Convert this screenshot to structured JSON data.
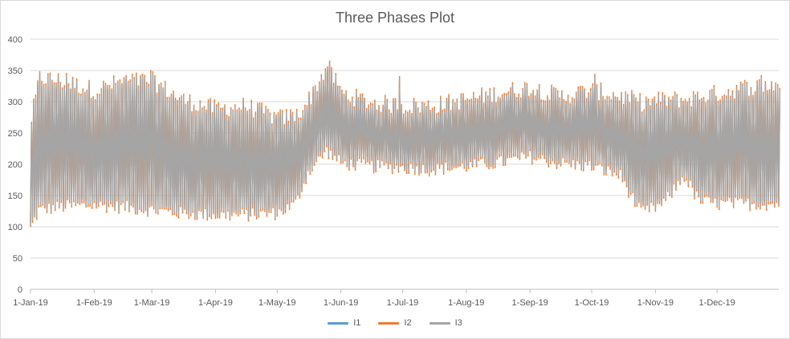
{
  "chart_data": {
    "type": "line",
    "title": "Three Phases Plot",
    "xlabel": "",
    "ylabel": "",
    "ylim": [
      0,
      400
    ],
    "yticks": [
      0,
      50,
      100,
      150,
      200,
      250,
      300,
      350,
      400
    ],
    "xlim": [
      "2019-01-01",
      "2019-12-31"
    ],
    "xticks": [
      {
        "label": "1-Jan-19",
        "date": "2019-01-01"
      },
      {
        "label": "1-Feb-19",
        "date": "2019-02-01"
      },
      {
        "label": "1-Mar-19",
        "date": "2019-03-01"
      },
      {
        "label": "1-Apr-19",
        "date": "2019-04-01"
      },
      {
        "label": "1-May-19",
        "date": "2019-05-01"
      },
      {
        "label": "1-Jun-19",
        "date": "2019-06-01"
      },
      {
        "label": "1-Jul-19",
        "date": "2019-07-01"
      },
      {
        "label": "1-Aug-19",
        "date": "2019-08-01"
      },
      {
        "label": "1-Sep-19",
        "date": "2019-09-01"
      },
      {
        "label": "1-Oct-19",
        "date": "2019-10-01"
      },
      {
        "label": "1-Nov-19",
        "date": "2019-11-01"
      },
      {
        "label": "1-Dec-19",
        "date": "2019-12-01"
      }
    ],
    "grid": true,
    "legend_position": "bottom",
    "envelope": [
      {
        "date": "2019-01-01",
        "low": 100,
        "high": 270
      },
      {
        "date": "2019-01-05",
        "low": 130,
        "high": 335
      },
      {
        "date": "2019-01-15",
        "low": 135,
        "high": 330
      },
      {
        "date": "2019-02-01",
        "low": 138,
        "high": 315
      },
      {
        "date": "2019-02-15",
        "low": 135,
        "high": 330
      },
      {
        "date": "2019-03-01",
        "low": 130,
        "high": 330
      },
      {
        "date": "2019-03-15",
        "low": 125,
        "high": 300
      },
      {
        "date": "2019-04-01",
        "low": 122,
        "high": 285
      },
      {
        "date": "2019-04-15",
        "low": 122,
        "high": 290
      },
      {
        "date": "2019-05-01",
        "low": 125,
        "high": 270
      },
      {
        "date": "2019-05-10",
        "low": 140,
        "high": 275
      },
      {
        "date": "2019-05-16",
        "low": 190,
        "high": 300
      },
      {
        "date": "2019-05-25",
        "low": 225,
        "high": 355
      },
      {
        "date": "2019-06-01",
        "low": 205,
        "high": 310
      },
      {
        "date": "2019-06-15",
        "low": 200,
        "high": 295
      },
      {
        "date": "2019-07-01",
        "low": 198,
        "high": 290
      },
      {
        "date": "2019-07-15",
        "low": 195,
        "high": 290
      },
      {
        "date": "2019-08-01",
        "low": 200,
        "high": 300
      },
      {
        "date": "2019-08-15",
        "low": 205,
        "high": 310
      },
      {
        "date": "2019-09-01",
        "low": 215,
        "high": 320
      },
      {
        "date": "2019-09-15",
        "low": 205,
        "high": 305
      },
      {
        "date": "2019-10-01",
        "low": 200,
        "high": 315
      },
      {
        "date": "2019-10-15",
        "low": 185,
        "high": 305
      },
      {
        "date": "2019-10-25",
        "low": 125,
        "high": 295
      },
      {
        "date": "2019-11-05",
        "low": 140,
        "high": 300
      },
      {
        "date": "2019-11-15",
        "low": 185,
        "high": 300
      },
      {
        "date": "2019-11-22",
        "low": 145,
        "high": 305
      },
      {
        "date": "2019-12-01",
        "low": 140,
        "high": 310
      },
      {
        "date": "2019-12-15",
        "low": 140,
        "high": 320
      },
      {
        "date": "2019-12-31",
        "low": 140,
        "high": 325
      }
    ],
    "series": [
      {
        "name": "I1",
        "color": "#5b9bd5",
        "offset": -4
      },
      {
        "name": "I2",
        "color": "#ed7d31",
        "offset": 4
      },
      {
        "name": "I3",
        "color": "#a5a5a5",
        "offset": 0
      }
    ],
    "spikes": [
      {
        "date": "2019-05-26",
        "value": 362
      },
      {
        "date": "2019-05-24",
        "value": 350
      },
      {
        "date": "2019-02-28",
        "value": 347
      },
      {
        "date": "2019-01-18",
        "value": 342
      },
      {
        "date": "2019-06-29",
        "value": 337
      },
      {
        "date": "2019-10-02",
        "value": 341
      },
      {
        "date": "2019-12-22",
        "value": 339
      }
    ]
  }
}
